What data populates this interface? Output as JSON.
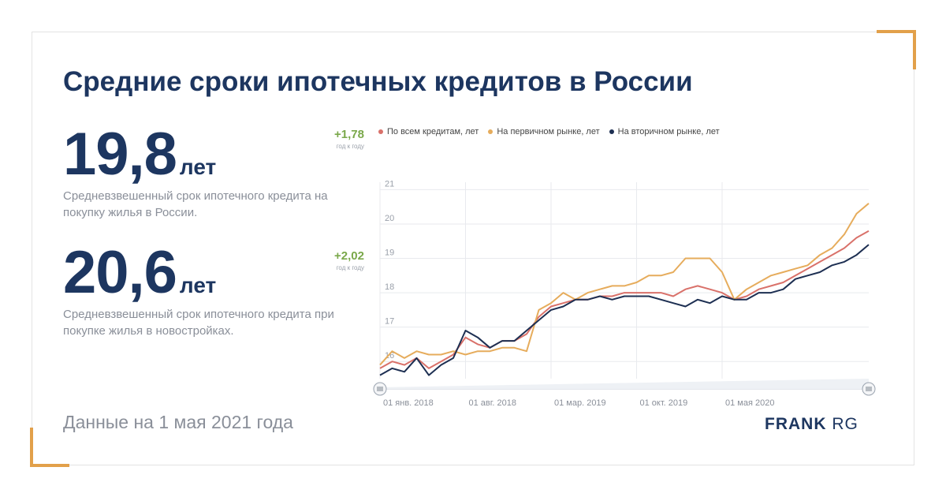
{
  "title": "Средние сроки ипотечных кредитов в России",
  "stats": [
    {
      "value": "19,8",
      "unit": "лет",
      "delta": "+1,78",
      "delta_sub": "год к году",
      "desc": "Средневзвешенный срок ипотечного кредита на покупку жилья в России."
    },
    {
      "value": "20,6",
      "unit": "лет",
      "delta": "+2,02",
      "delta_sub": "год к году",
      "desc": "Средневзвешенный срок ипотечного кредита при покупке жилья в новостройках."
    }
  ],
  "footer": {
    "date_note": "Данные на 1 мая 2021 года",
    "brand_bold": "FRANK",
    "brand_light": "RG"
  },
  "colors": {
    "accent": "#e2a04a",
    "navy": "#1d3660",
    "green": "#7aa84a"
  },
  "chart_data": {
    "type": "line",
    "y_ticks": [
      "21",
      "20",
      "19",
      "18",
      "17",
      "16"
    ],
    "ylim": [
      15.5,
      21.4
    ],
    "x_tick_labels": [
      "01 янв. 2018",
      "01 авг. 2018",
      "01 мар. 2019",
      "01 окт. 2019",
      "01 мая 2020"
    ],
    "x_tick_index": [
      0,
      7,
      14,
      21,
      28
    ],
    "x_count": 41,
    "grid": true,
    "legend_position": "top",
    "series": [
      {
        "name": "По всем кредитам, лет",
        "color": "#d9716a",
        "values": [
          15.8,
          16.0,
          15.9,
          16.1,
          15.8,
          16.0,
          16.2,
          16.7,
          16.5,
          16.4,
          16.6,
          16.6,
          16.8,
          17.3,
          17.6,
          17.7,
          17.8,
          17.8,
          17.9,
          17.9,
          18.0,
          18.0,
          18.0,
          18.0,
          17.9,
          18.1,
          18.2,
          18.1,
          18.0,
          17.8,
          17.9,
          18.1,
          18.2,
          18.3,
          18.5,
          18.7,
          18.9,
          19.1,
          19.3,
          19.6,
          19.8
        ]
      },
      {
        "name": "На первичном рынке, лет",
        "color": "#e6ac5c",
        "values": [
          15.9,
          16.3,
          16.1,
          16.3,
          16.2,
          16.2,
          16.3,
          16.2,
          16.3,
          16.3,
          16.4,
          16.4,
          16.3,
          17.5,
          17.7,
          18.0,
          17.8,
          18.0,
          18.1,
          18.2,
          18.2,
          18.3,
          18.5,
          18.5,
          18.6,
          19.0,
          19.0,
          19.0,
          18.6,
          17.8,
          18.1,
          18.3,
          18.5,
          18.6,
          18.7,
          18.8,
          19.1,
          19.3,
          19.7,
          20.3,
          20.6
        ]
      },
      {
        "name": "На вторичном рынке, лет",
        "color": "#1d2f52",
        "values": [
          15.6,
          15.8,
          15.7,
          16.1,
          15.6,
          15.9,
          16.1,
          16.9,
          16.7,
          16.4,
          16.6,
          16.6,
          16.9,
          17.2,
          17.5,
          17.6,
          17.8,
          17.8,
          17.9,
          17.8,
          17.9,
          17.9,
          17.9,
          17.8,
          17.7,
          17.6,
          17.8,
          17.7,
          17.9,
          17.8,
          17.8,
          18.0,
          18.0,
          18.1,
          18.4,
          18.5,
          18.6,
          18.8,
          18.9,
          19.1,
          19.4
        ]
      }
    ]
  }
}
